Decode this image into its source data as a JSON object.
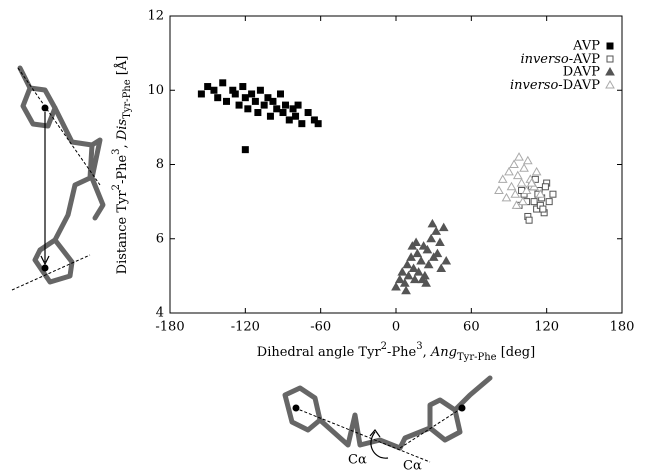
{
  "chart_data": {
    "type": "scatter",
    "x_label": [
      "Dihedral angle Tyr",
      "2",
      "-Phe",
      "3",
      ", ",
      "Ang",
      "Tyr-Phe",
      " [deg]"
    ],
    "y_label": [
      "Distance Tyr",
      "2",
      "-Phe",
      "3",
      ", ",
      "Dis",
      "Tyr-Phe",
      " [Å]"
    ],
    "xlim": [
      -180,
      180
    ],
    "xticks": [
      -180,
      -120,
      -60,
      0,
      60,
      120,
      180
    ],
    "ylim": [
      4,
      12
    ],
    "yticks": [
      4,
      6,
      8,
      10,
      12
    ],
    "legend": "upper right",
    "series": [
      {
        "name": "AVP",
        "color": "#000000",
        "marker": "square",
        "filled": true,
        "x": [
          -155,
          -150,
          -145,
          -142,
          -138,
          -135,
          -130,
          -128,
          -125,
          -122,
          -120,
          -118,
          -115,
          -112,
          -110,
          -108,
          -105,
          -102,
          -100,
          -98,
          -95,
          -92,
          -90,
          -88,
          -85,
          -82,
          -80,
          -78,
          -75,
          -70,
          -65,
          -62,
          -120
        ],
        "values": [
          9.9,
          10.1,
          10.0,
          9.8,
          10.2,
          9.7,
          10.0,
          9.9,
          9.6,
          10.1,
          9.8,
          9.5,
          9.9,
          9.7,
          9.4,
          10.0,
          9.6,
          9.8,
          9.3,
          9.7,
          9.5,
          9.9,
          9.4,
          9.6,
          9.2,
          9.5,
          9.3,
          9.6,
          9.1,
          9.4,
          9.2,
          9.1,
          8.4
        ]
      },
      {
        "name": "inverso-AVP",
        "color": "#555555",
        "marker": "square",
        "filled": false,
        "x": [
          98,
          102,
          105,
          108,
          110,
          112,
          114,
          116,
          118,
          120,
          122,
          125,
          100,
          106,
          111,
          115,
          119,
          104,
          113,
          117
        ],
        "values": [
          6.9,
          7.2,
          6.6,
          7.4,
          7.0,
          6.8,
          7.3,
          7.1,
          6.7,
          7.5,
          7.0,
          7.2,
          7.3,
          6.5,
          7.6,
          6.9,
          7.4,
          7.0,
          7.2,
          6.8
        ]
      },
      {
        "name": "DAVP",
        "color": "#555555",
        "marker": "triangle",
        "filled": true,
        "x": [
          0,
          3,
          5,
          7,
          9,
          10,
          12,
          14,
          15,
          17,
          18,
          20,
          22,
          23,
          25,
          26,
          28,
          30,
          32,
          33,
          35,
          38,
          40,
          8,
          16,
          24,
          29,
          13,
          21,
          36
        ],
        "values": [
          4.7,
          4.9,
          5.1,
          4.8,
          5.3,
          5.0,
          5.5,
          5.2,
          4.9,
          5.6,
          5.1,
          5.4,
          5.8,
          5.0,
          5.7,
          5.3,
          6.0,
          5.5,
          6.2,
          5.6,
          5.9,
          6.3,
          5.4,
          4.6,
          5.9,
          4.8,
          6.4,
          5.8,
          4.9,
          5.2
        ]
      },
      {
        "name": "inverso-DAVP",
        "color": "#aaaaaa",
        "marker": "triangle",
        "filled": false,
        "x": [
          82,
          85,
          88,
          90,
          92,
          94,
          95,
          97,
          98,
          100,
          102,
          104,
          105,
          107,
          110,
          112,
          115,
          96,
          101,
          108
        ],
        "values": [
          7.3,
          7.6,
          7.1,
          7.8,
          7.4,
          8.0,
          7.2,
          7.7,
          8.2,
          7.5,
          7.9,
          7.3,
          8.1,
          7.6,
          7.4,
          7.8,
          7.2,
          6.9,
          7.0,
          7.5
        ]
      }
    ]
  },
  "annotations": {
    "calpha_labels": [
      "Cα",
      "Cα"
    ]
  }
}
